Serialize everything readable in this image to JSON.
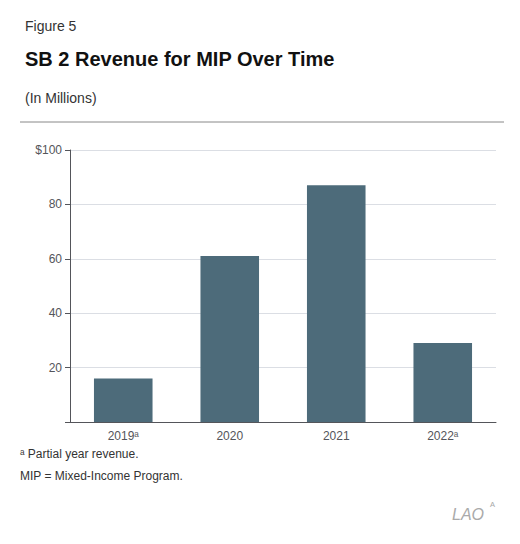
{
  "chart_data": {
    "type": "bar",
    "title": "SB 2 Revenue for MIP Over Time",
    "subtitle": "(In Millions)",
    "annotations": [
      "Figure 5",
      "ᵃ Partial year revenue.",
      "MIP = Mixed-Income Program.",
      "LAO",
      "ᴬ"
    ],
    "categories": [
      "2019ᵃ",
      "2020",
      "2021",
      "2022ᵃ"
    ],
    "values": [
      16,
      61,
      87,
      29
    ],
    "color": "#4d6b7a",
    "ylim": [
      0,
      100
    ],
    "yticks": [
      {
        "value": 0,
        "label": ""
      },
      20,
      40,
      60,
      80,
      {
        "value": 100,
        "label": "$100"
      }
    ],
    "grid": true
  }
}
